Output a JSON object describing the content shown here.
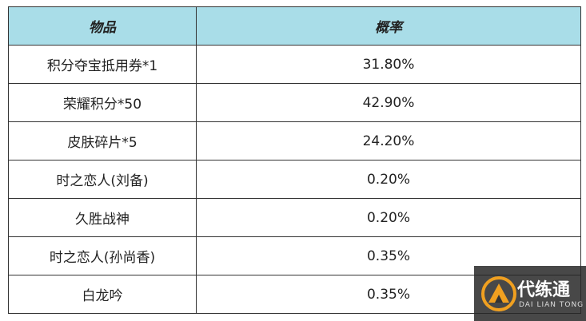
{
  "table": {
    "header": [
      "物品",
      "概率"
    ],
    "rows": [
      [
        "积分夺宝抵用券*1",
        "31.80%"
      ],
      [
        "荣耀积分*50",
        "42.90%"
      ],
      [
        "皮肤碎片*5",
        "24.20%"
      ],
      [
        "时之恋人(刘备)",
        "0.20%"
      ],
      [
        "久胜战神",
        "0.20%"
      ],
      [
        "时之恋人(孙尚香)",
        "0.35%"
      ],
      [
        "白龙吟",
        "0.35%"
      ]
    ]
  },
  "watermark": {
    "brand": "代练通",
    "pinyin": "DAI LIAN TONG"
  }
}
